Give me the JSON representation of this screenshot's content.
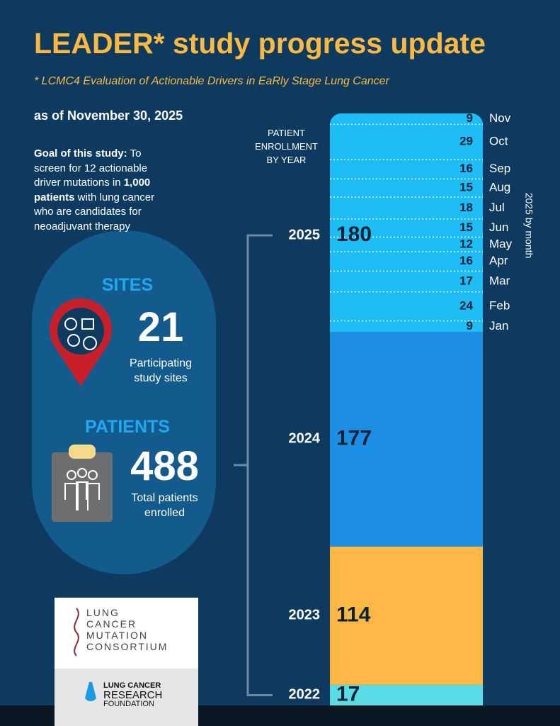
{
  "header": {
    "title": "LEADER* study progress update",
    "subtitle": "* LCMC4 Evaluation of Actionable Drivers in EaRly Stage Lung Cancer",
    "as_of": "as of November 30, 2025"
  },
  "goal": {
    "label": "Goal of this study:",
    "text_1": " To screen for 12 actionable driver mutations in ",
    "bold": "1,000 patients",
    "text_2": " with lung cancer who are candidates for neoadjuvant therapy"
  },
  "sites": {
    "heading": "SITES",
    "value": 21,
    "caption": "Participating study sites"
  },
  "patients": {
    "heading": "PATIENTS",
    "value": 488,
    "caption": "Total patients enrolled"
  },
  "chart_data": {
    "type": "stacked_bar",
    "title": "PATIENT ENROLLMENT BY YEAR",
    "categories": [
      "2022",
      "2023",
      "2024",
      "2025"
    ],
    "values": [
      17,
      114,
      177,
      180
    ],
    "colors": [
      "#5adbe6",
      "#fdb744",
      "#1c8fe4",
      "#1fbdf6"
    ],
    "breakdown": {
      "title": "2025 by month",
      "categories": [
        "Jan",
        "Feb",
        "Mar",
        "Apr",
        "May",
        "Jun",
        "Jul",
        "Aug",
        "Sep",
        "Oct",
        "Nov"
      ],
      "values": [
        9,
        24,
        17,
        16,
        12,
        15,
        18,
        15,
        16,
        29,
        9
      ]
    }
  },
  "logos": {
    "lcmc": [
      "LUNG",
      "CANCER",
      "MUTATION",
      "CONSORTIUM"
    ],
    "lcrf": [
      "LUNG CANCER",
      "RESEARCH",
      "FOUNDATION"
    ]
  }
}
